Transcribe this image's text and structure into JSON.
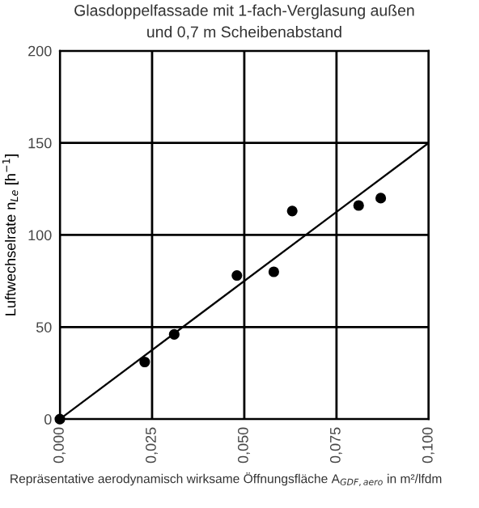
{
  "chart_data": {
    "type": "scatter",
    "title": "Glasdoppelfassade mit 1-fach-Verglasung außen\nund 0,7 m Scheibenabstand",
    "xlabel": "Repräsentative aerodynamisch wirksame Öffnungsfläche A$_{GDF,aero}$ in m²/lfdm",
    "ylabel": "Luftwechselrate n$_{Le}$ [h$^{−1}$]",
    "xlim": [
      0,
      0.1
    ],
    "ylim": [
      0,
      200
    ],
    "xticks": [
      {
        "value": 0,
        "label": "0,000"
      },
      {
        "value": 0.025,
        "label": "0,025"
      },
      {
        "value": 0.05,
        "label": "0,050"
      },
      {
        "value": 0.075,
        "label": "0,075"
      },
      {
        "value": 0.1,
        "label": "0,100"
      }
    ],
    "yticks": [
      0,
      50,
      100,
      150,
      200
    ],
    "grid": true,
    "legend": false,
    "series": [
      {
        "color": "#000000",
        "marker": "circle",
        "x": [
          0,
          0.023,
          0.031,
          0.048,
          0.058,
          0.063,
          0.081,
          0.087
        ],
        "values": [
          0,
          31,
          46,
          78,
          80,
          113,
          116,
          120
        ]
      },
      {
        "type": "line",
        "color": "#000000",
        "marker": "none",
        "line_style": "solid",
        "x": [
          0,
          0.1
        ],
        "values": [
          0,
          150
        ]
      }
    ]
  }
}
